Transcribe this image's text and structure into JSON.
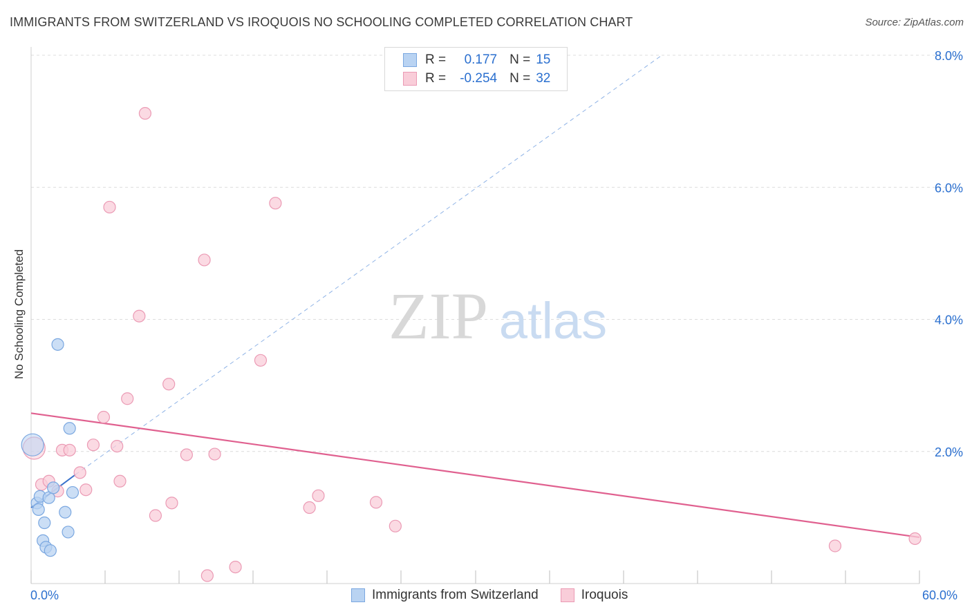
{
  "title": "IMMIGRANTS FROM SWITZERLAND VS IROQUOIS NO SCHOOLING COMPLETED CORRELATION CHART",
  "source": "Source: ZipAtlas.com",
  "watermark": {
    "zip": "ZIP",
    "atlas": "atlas"
  },
  "legend": {
    "rows": [
      {
        "r_label": "R =",
        "r_value": "0.177",
        "n_label": "N =",
        "n_value": "15"
      },
      {
        "r_label": "R =",
        "r_value": "-0.254",
        "n_label": "N =",
        "n_value": "32"
      }
    ]
  },
  "colors": {
    "blue_fill": "#b9d3f2",
    "blue_stroke": "#7aa7e0",
    "blue_line": "#3a72cc",
    "pink_fill": "#f9cdd9",
    "pink_stroke": "#eb9ab4",
    "pink_line": "#e0608f",
    "grid": "#dcdcdc",
    "axis_text": "#2a6fcf"
  },
  "chart_data": {
    "type": "scatter",
    "title": "IMMIGRANTS FROM SWITZERLAND VS IROQUOIS NO SCHOOLING COMPLETED CORRELATION CHART",
    "xlabel": "",
    "ylabel": "No Schooling Completed",
    "xlim": [
      0,
      60
    ],
    "ylim": [
      0,
      8.3
    ],
    "x_tick_labels": [
      "0.0%",
      "60.0%"
    ],
    "y_ticks": [
      2,
      4,
      6,
      8
    ],
    "y_tick_labels": [
      "2.0%",
      "4.0%",
      "6.0%",
      "8.0%"
    ],
    "grid": true,
    "series": [
      {
        "name": "Immigrants from Switzerland",
        "color": "blue",
        "points": [
          [
            0.1,
            2.1
          ],
          [
            0.4,
            1.22
          ],
          [
            0.5,
            1.12
          ],
          [
            0.6,
            1.32
          ],
          [
            0.8,
            0.65
          ],
          [
            0.9,
            0.92
          ],
          [
            1.0,
            0.55
          ],
          [
            1.2,
            1.3
          ],
          [
            1.3,
            0.5
          ],
          [
            1.5,
            1.45
          ],
          [
            1.8,
            3.62
          ],
          [
            2.3,
            1.08
          ],
          [
            2.5,
            0.78
          ],
          [
            2.6,
            2.35
          ],
          [
            2.8,
            1.38
          ]
        ],
        "trend": {
          "x0": 0,
          "y0": 1.15,
          "x1": 3.0,
          "y1": 1.65,
          "style": "solid"
        },
        "trend_extension": {
          "x0": 3.0,
          "y0": 1.65,
          "x1": 42.6,
          "y1": 8.0,
          "style": "dashed"
        }
      },
      {
        "name": "Iroquois",
        "color": "pink",
        "points": [
          [
            0.2,
            2.05
          ],
          [
            0.7,
            1.5
          ],
          [
            1.2,
            1.55
          ],
          [
            1.8,
            1.4
          ],
          [
            2.1,
            2.02
          ],
          [
            2.6,
            2.02
          ],
          [
            3.3,
            1.68
          ],
          [
            3.7,
            1.42
          ],
          [
            4.2,
            2.1
          ],
          [
            4.9,
            2.52
          ],
          [
            5.3,
            5.7
          ],
          [
            5.8,
            2.08
          ],
          [
            6.0,
            1.55
          ],
          [
            6.5,
            2.8
          ],
          [
            7.3,
            4.05
          ],
          [
            7.7,
            7.12
          ],
          [
            8.4,
            1.03
          ],
          [
            9.3,
            3.02
          ],
          [
            9.5,
            1.22
          ],
          [
            10.5,
            1.95
          ],
          [
            11.7,
            4.9
          ],
          [
            11.9,
            0.12
          ],
          [
            12.4,
            1.96
          ],
          [
            13.8,
            0.25
          ],
          [
            15.5,
            3.38
          ],
          [
            16.5,
            5.76
          ],
          [
            18.8,
            1.15
          ],
          [
            19.4,
            1.33
          ],
          [
            23.3,
            1.23
          ],
          [
            24.6,
            0.87
          ],
          [
            54.3,
            0.57
          ],
          [
            59.7,
            0.68
          ]
        ],
        "trend": {
          "x0": 0,
          "y0": 2.58,
          "x1": 60,
          "y1": 0.7,
          "style": "solid"
        }
      }
    ]
  },
  "bottom_legend": {
    "items": [
      {
        "label": "Immigrants from Switzerland"
      },
      {
        "label": "Iroquois"
      }
    ]
  }
}
